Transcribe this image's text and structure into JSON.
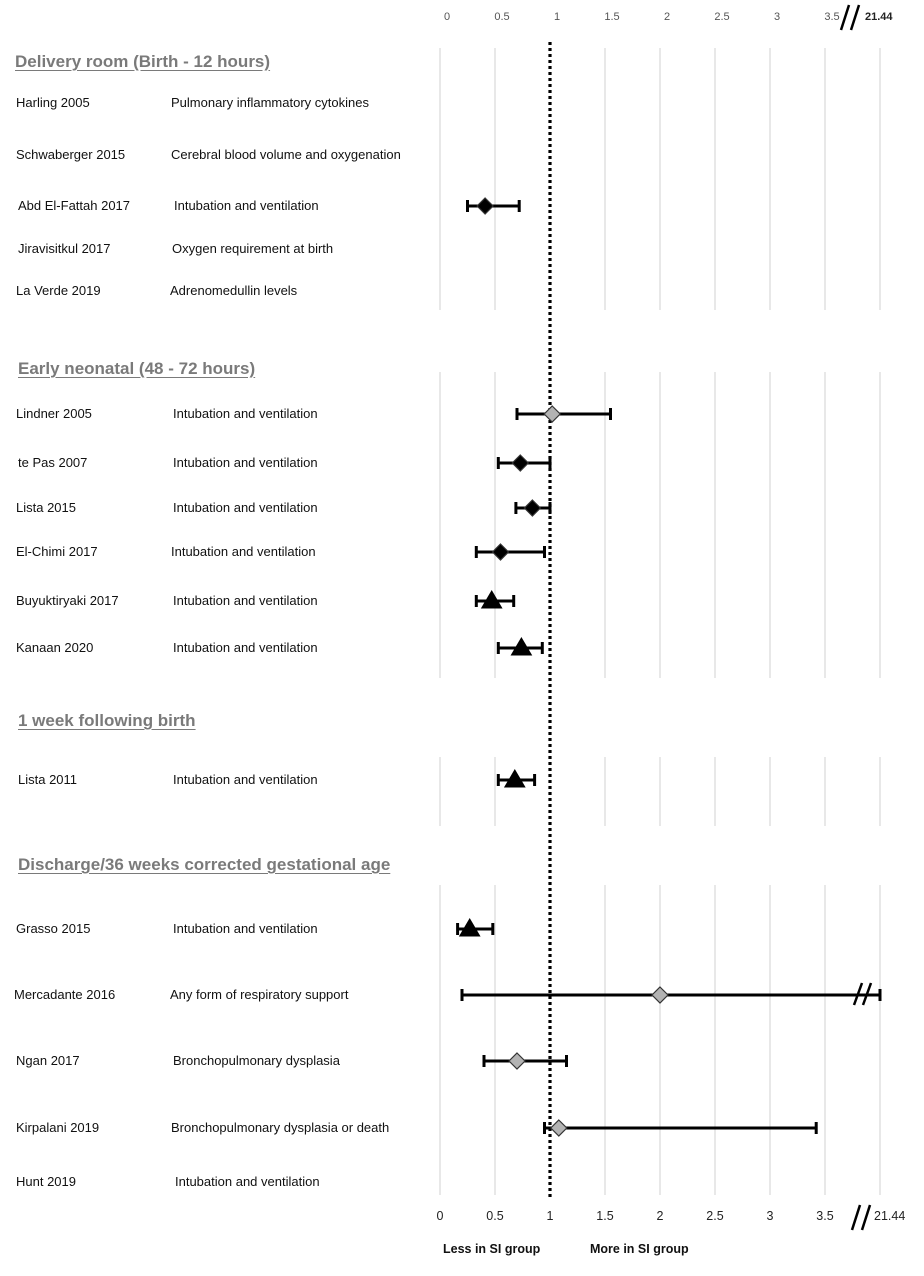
{
  "chart_data": {
    "type": "forest",
    "x_ticks": [
      "0",
      "0.5",
      "1",
      "1.5",
      "2",
      "2.5",
      "3",
      "3.5"
    ],
    "x_break_label": "21.44",
    "xlim": [
      0,
      4
    ],
    "reference_line": 1,
    "grid": true,
    "footer_left": "Less in SI group",
    "footer_right": "More in SI group",
    "sections": [
      {
        "title": "Delivery room (Birth - 12 hours)",
        "studies": [
          {
            "study": "Harling 2005",
            "outcome": "Pulmonary inflammatory cytokines",
            "estimate": null,
            "lower": null,
            "upper": null,
            "marker": null
          },
          {
            "study": "Schwaberger 2015",
            "outcome": "Cerebral blood volume and oxygenation",
            "estimate": null,
            "lower": null,
            "upper": null,
            "marker": null
          },
          {
            "study": "Abd El-Fattah 2017",
            "outcome": "Intubation and ventilation",
            "estimate": 0.41,
            "lower": 0.25,
            "upper": 0.72,
            "marker": "diamond-black"
          },
          {
            "study": "Jiravisitkul 2017",
            "outcome": "Oxygen requirement at birth",
            "estimate": null,
            "lower": null,
            "upper": null,
            "marker": null
          },
          {
            "study": "La Verde 2019",
            "outcome": "Adrenomedullin levels",
            "estimate": null,
            "lower": null,
            "upper": null,
            "marker": null
          }
        ]
      },
      {
        "title": "Early neonatal (48 - 72 hours)",
        "studies": [
          {
            "study": "Lindner 2005",
            "outcome": "Intubation and ventilation",
            "estimate": 1.02,
            "lower": 0.7,
            "upper": 1.55,
            "marker": "diamond-grey"
          },
          {
            "study": "te Pas 2007",
            "outcome": "Intubation and ventilation",
            "estimate": 0.73,
            "lower": 0.53,
            "upper": 1.0,
            "marker": "diamond-black"
          },
          {
            "study": "Lista 2015",
            "outcome": "Intubation and ventilation",
            "estimate": 0.84,
            "lower": 0.69,
            "upper": 1.0,
            "marker": "diamond-black"
          },
          {
            "study": "El-Chimi 2017",
            "outcome": "Intubation and ventilation",
            "estimate": 0.55,
            "lower": 0.33,
            "upper": 0.95,
            "marker": "diamond-black"
          },
          {
            "study": "Buyuktiryaki 2017",
            "outcome": "Intubation and ventilation",
            "estimate": 0.47,
            "lower": 0.33,
            "upper": 0.67,
            "marker": "triangle"
          },
          {
            "study": "Kanaan 2020",
            "outcome": "Intubation and ventilation",
            "estimate": 0.74,
            "lower": 0.53,
            "upper": 0.93,
            "marker": "triangle"
          }
        ]
      },
      {
        "title": "1 week following birth",
        "studies": [
          {
            "study": "Lista 2011",
            "outcome": "Intubation and ventilation",
            "estimate": 0.68,
            "lower": 0.53,
            "upper": 0.86,
            "marker": "triangle"
          }
        ]
      },
      {
        "title": "Discharge/36 weeks corrected gestational age",
        "studies": [
          {
            "study": "Grasso 2015",
            "outcome": "Intubation and ventilation",
            "estimate": 0.27,
            "lower": 0.16,
            "upper": 0.48,
            "marker": "triangle"
          },
          {
            "study": "Mercadante 2016",
            "outcome": "Any form of respiratory support",
            "estimate": 2.0,
            "lower": 0.2,
            "upper": 21.44,
            "marker": "diamond-grey",
            "upper_truncated": true
          },
          {
            "study": "Ngan 2017",
            "outcome": "Bronchopulmonary dysplasia",
            "estimate": 0.7,
            "lower": 0.4,
            "upper": 1.15,
            "marker": "diamond-grey"
          },
          {
            "study": "Kirpalani 2019",
            "outcome": "Bronchopulmonary dysplasia or death",
            "estimate": 1.08,
            "lower": 0.95,
            "upper": 3.42,
            "marker": "diamond-grey"
          },
          {
            "study": "Hunt 2019",
            "outcome": "Intubation and ventilation",
            "estimate": null,
            "lower": null,
            "upper": null,
            "marker": null
          }
        ]
      }
    ]
  }
}
